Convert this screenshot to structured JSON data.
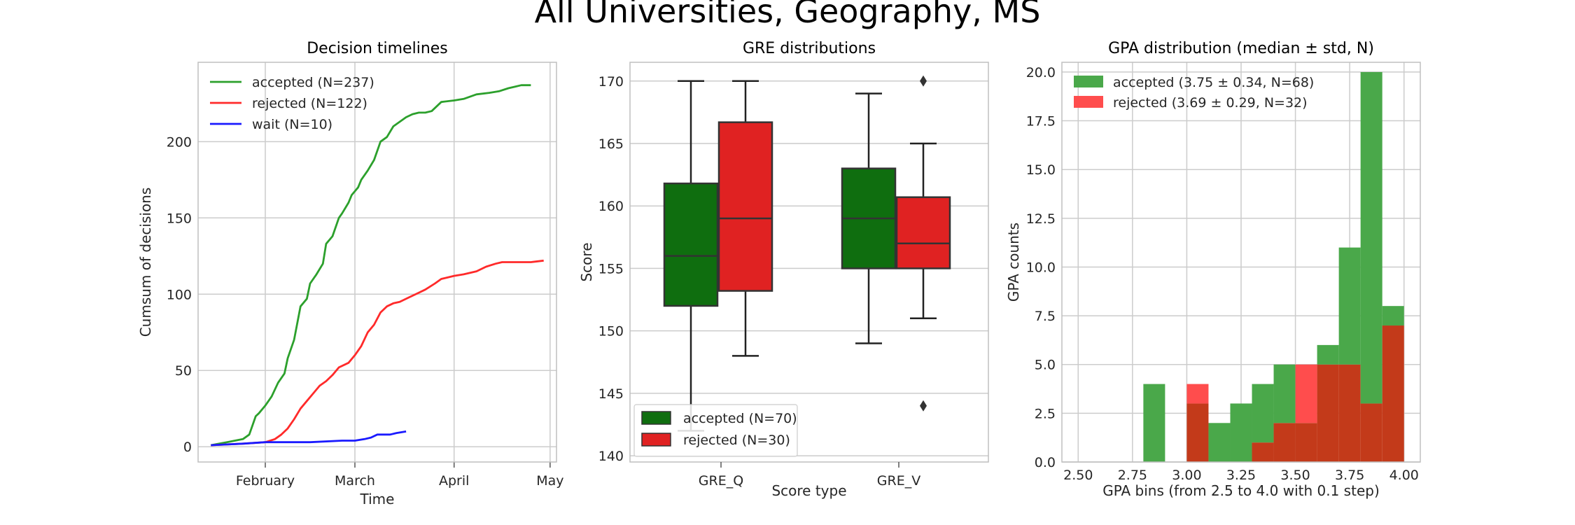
{
  "suptitle": "All Universities, Geography, MS",
  "chart_data": [
    {
      "type": "line",
      "title": "Decision timelines",
      "xlabel": "Time",
      "ylabel": "Cumsum of decisions",
      "xticks": [
        "February",
        "March",
        "April",
        "May"
      ],
      "xlim": [
        "2019-01-11",
        "2019-05-03"
      ],
      "ylim": [
        -10,
        252
      ],
      "yticks": [
        0,
        50,
        100,
        150,
        200
      ],
      "grid": true,
      "legend": "top-left",
      "series": [
        {
          "name": "accepted (N=237)",
          "color": "#2ca02c",
          "x": [
            "2019-01-15",
            "2019-01-20",
            "2019-01-25",
            "2019-01-27",
            "2019-01-29",
            "2019-01-30",
            "2019-02-01",
            "2019-02-03",
            "2019-02-05",
            "2019-02-07",
            "2019-02-08",
            "2019-02-10",
            "2019-02-12",
            "2019-02-14",
            "2019-02-15",
            "2019-02-17",
            "2019-02-19",
            "2019-02-20",
            "2019-02-22",
            "2019-02-24",
            "2019-02-25",
            "2019-02-27",
            "2019-02-28",
            "2019-03-02",
            "2019-03-03",
            "2019-03-05",
            "2019-03-07",
            "2019-03-09",
            "2019-03-11",
            "2019-03-13",
            "2019-03-15",
            "2019-03-17",
            "2019-03-19",
            "2019-03-21",
            "2019-03-23",
            "2019-03-25",
            "2019-03-28",
            "2019-04-01",
            "2019-04-04",
            "2019-04-08",
            "2019-04-12",
            "2019-04-15",
            "2019-04-18",
            "2019-04-20",
            "2019-04-22",
            "2019-04-25"
          ],
          "y": [
            1,
            3,
            5,
            8,
            20,
            22,
            27,
            33,
            42,
            48,
            58,
            70,
            92,
            97,
            107,
            113,
            120,
            133,
            138,
            150,
            153,
            160,
            165,
            170,
            175,
            181,
            188,
            200,
            203,
            210,
            213,
            216,
            218,
            219,
            219,
            220,
            226,
            227,
            228,
            231,
            232,
            233,
            235,
            236,
            237,
            237
          ]
        },
        {
          "name": "rejected (N=122)",
          "color": "#ff2a2a",
          "x": [
            "2019-01-15",
            "2019-01-25",
            "2019-02-01",
            "2019-02-04",
            "2019-02-06",
            "2019-02-08",
            "2019-02-10",
            "2019-02-12",
            "2019-02-14",
            "2019-02-16",
            "2019-02-18",
            "2019-02-20",
            "2019-02-22",
            "2019-02-24",
            "2019-02-27",
            "2019-03-01",
            "2019-03-03",
            "2019-03-05",
            "2019-03-07",
            "2019-03-09",
            "2019-03-11",
            "2019-03-13",
            "2019-03-15",
            "2019-03-18",
            "2019-03-21",
            "2019-03-23",
            "2019-03-26",
            "2019-03-28",
            "2019-04-01",
            "2019-04-04",
            "2019-04-08",
            "2019-04-11",
            "2019-04-14",
            "2019-04-16",
            "2019-04-25",
            "2019-04-29"
          ],
          "y": [
            1,
            2,
            3,
            5,
            8,
            12,
            18,
            25,
            30,
            35,
            40,
            43,
            47,
            52,
            55,
            60,
            66,
            75,
            80,
            88,
            92,
            94,
            95,
            98,
            101,
            103,
            107,
            110,
            112,
            113,
            115,
            118,
            120,
            121,
            121,
            122
          ]
        },
        {
          "name": "wait (N=10)",
          "color": "#1a1aff",
          "x": [
            "2019-01-15",
            "2019-01-25",
            "2019-02-01",
            "2019-02-15",
            "2019-02-25",
            "2019-03-01",
            "2019-03-04",
            "2019-03-06",
            "2019-03-08",
            "2019-03-12",
            "2019-03-14",
            "2019-03-17"
          ],
          "y": [
            1,
            2,
            3,
            3,
            4,
            4,
            5,
            6,
            8,
            8,
            9,
            10
          ]
        }
      ]
    },
    {
      "type": "box",
      "title": "GRE distributions",
      "xlabel": "Score type",
      "ylabel": "Score",
      "categories": [
        "GRE_Q",
        "GRE_V"
      ],
      "ylim": [
        139.5,
        171.5
      ],
      "yticks": [
        140,
        145,
        150,
        155,
        160,
        165,
        170
      ],
      "grid": true,
      "legend": "bottom-left",
      "series": [
        {
          "name": "accepted (N=70)",
          "color": "#0f6e0f",
          "boxes": [
            {
              "whislo": 142,
              "q1": 152,
              "med": 156,
              "q3": 161.8,
              "whishi": 170,
              "fliers": []
            },
            {
              "whislo": 149,
              "q1": 155,
              "med": 159,
              "q3": 163,
              "whishi": 169,
              "fliers": []
            }
          ]
        },
        {
          "name": "rejected (N=30)",
          "color": "#e02222",
          "boxes": [
            {
              "whislo": 148,
              "q1": 153.2,
              "med": 159,
              "q3": 166.7,
              "whishi": 170,
              "fliers": []
            },
            {
              "whislo": 151,
              "q1": 155,
              "med": 157,
              "q3": 160.7,
              "whishi": 165,
              "fliers": [
                170,
                144
              ]
            }
          ]
        }
      ]
    },
    {
      "type": "histogram",
      "title": "GPA distribution (median ± std, N)",
      "xlabel": "GPA bins (from 2.5 to 4.0 with 0.1 step)",
      "ylabel": "GPA counts",
      "xlim": [
        2.425,
        4.075
      ],
      "ylim": [
        0,
        20.5
      ],
      "xticks": [
        2.5,
        2.75,
        3.0,
        3.25,
        3.5,
        3.75,
        4.0
      ],
      "xtick_labels": [
        "2.50",
        "2.75",
        "3.00",
        "3.25",
        "3.50",
        "3.75",
        "4.00"
      ],
      "yticks": [
        0,
        2.5,
        5,
        7.5,
        10,
        12.5,
        15,
        17.5,
        20
      ],
      "ytick_labels": [
        "0.0",
        "2.5",
        "5.0",
        "7.5",
        "10.0",
        "12.5",
        "15.0",
        "17.5",
        "20.0"
      ],
      "grid": true,
      "legend": "top-left",
      "bin_edges": [
        2.5,
        2.6,
        2.7,
        2.8,
        2.9,
        3.0,
        3.1,
        3.2,
        3.3,
        3.4,
        3.5,
        3.6,
        3.7,
        3.8,
        3.9,
        4.0
      ],
      "series": [
        {
          "name": "accepted (3.75 ± 0.34, N=68)",
          "color": "#4aa84a",
          "counts": [
            0,
            0,
            0,
            4,
            0,
            3,
            2,
            3,
            4,
            5,
            2,
            6,
            11,
            20,
            8
          ]
        },
        {
          "name": "rejected (3.69 ± 0.29, N=32)",
          "color": "#ff4d4d",
          "counts": [
            0,
            0,
            0,
            0,
            0,
            4,
            0,
            0,
            1,
            2,
            5,
            5,
            5,
            3,
            7
          ]
        }
      ],
      "overlap_color": "#c33a1a"
    }
  ]
}
